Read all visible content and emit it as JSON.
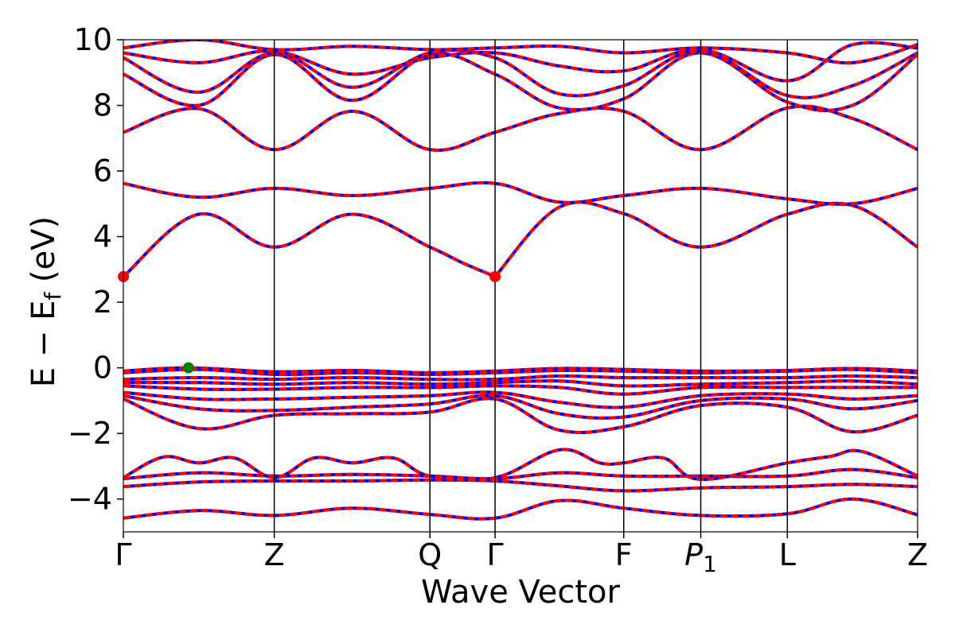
{
  "chart_data": {
    "type": "line",
    "xlabel": "Wave Vector",
    "ylabel": "E − E_f (eV)",
    "ylabel_parts": {
      "main": "E − E",
      "sub": "f",
      "unit": " (eV)"
    },
    "ylim": [
      -5,
      10
    ],
    "yticks": [
      -4,
      -2,
      0,
      2,
      4,
      6,
      8,
      10
    ],
    "ytick_labels": [
      "−4",
      "−2",
      "0",
      "2",
      "4",
      "6",
      "8",
      "10"
    ],
    "grid": false,
    "legend": "none",
    "x_range": [
      0,
      1
    ],
    "kpoints": [
      {
        "label": "Γ",
        "x": 0.0
      },
      {
        "label": "Z",
        "x": 0.19
      },
      {
        "label": "Q",
        "x": 0.386
      },
      {
        "label": "Γ",
        "x": 0.468
      },
      {
        "label": "F",
        "x": 0.63
      },
      {
        "label": "P",
        "sub": "1",
        "italic": true,
        "x": 0.727
      },
      {
        "label": "L",
        "x": 0.836
      },
      {
        "label": "Z",
        "x": 1.0
      }
    ],
    "colors": {
      "band_solid": "#0000ff",
      "band_dashed": "#ff0000",
      "vbm_marker": "#008000",
      "cbm_marker": "#ff0000"
    },
    "markers": [
      {
        "name": "vbm",
        "x": 0.082,
        "y": 0.0
      },
      {
        "name": "cbm",
        "x": 0.0,
        "y": 2.78
      },
      {
        "name": "cbm",
        "x": 0.468,
        "y": 2.78
      }
    ],
    "series": [
      {
        "x": [
          0.0,
          0.095,
          0.19,
          0.288,
          0.386,
          0.468,
          0.549,
          0.63,
          0.727,
          0.836,
          0.918,
          1.0
        ],
        "y": [
          -4.58,
          -4.35,
          -4.5,
          -4.28,
          -4.47,
          -4.58,
          -4.05,
          -4.28,
          -4.5,
          -4.45,
          -4.0,
          -4.48
        ]
      },
      {
        "x": [
          0.0,
          0.095,
          0.19,
          0.288,
          0.386,
          0.468,
          0.549,
          0.63,
          0.727,
          0.836,
          0.918,
          1.0
        ],
        "y": [
          -3.62,
          -3.48,
          -3.45,
          -3.45,
          -3.42,
          -3.45,
          -3.6,
          -3.75,
          -3.66,
          -3.62,
          -3.55,
          -3.62
        ]
      },
      {
        "x": [
          0.0,
          0.095,
          0.19,
          0.288,
          0.386,
          0.468,
          0.549,
          0.63,
          0.727,
          0.836,
          0.918,
          1.0
        ],
        "y": [
          -3.38,
          -3.2,
          -3.3,
          -3.25,
          -3.3,
          -3.38,
          -3.2,
          -3.3,
          -3.3,
          -3.3,
          -3.1,
          -3.35
        ]
      },
      {
        "x": [
          0.0,
          0.05,
          0.095,
          0.14,
          0.19,
          0.24,
          0.288,
          0.34,
          0.386,
          0.468,
          0.549,
          0.6,
          0.63,
          0.68,
          0.727,
          0.836,
          0.89,
          0.93,
          1.0
        ],
        "y": [
          -3.35,
          -2.72,
          -2.9,
          -2.75,
          -3.35,
          -2.75,
          -2.9,
          -2.75,
          -3.3,
          -3.35,
          -2.5,
          -2.9,
          -2.9,
          -2.75,
          -3.4,
          -2.9,
          -2.7,
          -2.55,
          -3.3
        ]
      },
      {
        "x": [
          0.0,
          0.095,
          0.19,
          0.288,
          0.386,
          0.468,
          0.549,
          0.63,
          0.727,
          0.836,
          0.918,
          1.0
        ],
        "y": [
          -0.95,
          -1.85,
          -1.45,
          -1.4,
          -1.35,
          -0.95,
          -1.9,
          -1.8,
          -1.15,
          -1.2,
          -1.95,
          -1.45
        ]
      },
      {
        "x": [
          0.0,
          0.095,
          0.19,
          0.288,
          0.386,
          0.468,
          0.549,
          0.63,
          0.727,
          0.836,
          0.918,
          1.0
        ],
        "y": [
          -0.85,
          -1.25,
          -1.3,
          -1.2,
          -1.1,
          -0.85,
          -1.4,
          -1.5,
          -1.0,
          -0.95,
          -1.25,
          -1.0
        ]
      },
      {
        "x": [
          0.0,
          0.095,
          0.19,
          0.288,
          0.386,
          0.468,
          0.549,
          0.63,
          0.727,
          0.836,
          0.918,
          1.0
        ],
        "y": [
          -0.75,
          -0.95,
          -0.95,
          -0.9,
          -0.85,
          -0.75,
          -1.05,
          -1.2,
          -0.85,
          -0.8,
          -0.95,
          -0.85
        ]
      },
      {
        "x": [
          0.0,
          0.095,
          0.19,
          0.288,
          0.386,
          0.468,
          0.549,
          0.63,
          0.727,
          0.836,
          0.918,
          1.0
        ],
        "y": [
          -0.55,
          -0.65,
          -0.65,
          -0.6,
          -0.6,
          -0.55,
          -0.6,
          -0.8,
          -0.6,
          -0.6,
          -0.6,
          -0.6
        ]
      },
      {
        "x": [
          0.0,
          0.095,
          0.19,
          0.288,
          0.386,
          0.468,
          0.549,
          0.63,
          0.727,
          0.836,
          0.918,
          1.0
        ],
        "y": [
          -0.45,
          -0.45,
          -0.5,
          -0.45,
          -0.5,
          -0.45,
          -0.4,
          -0.55,
          -0.5,
          -0.45,
          -0.4,
          -0.5
        ]
      },
      {
        "x": [
          0.0,
          0.095,
          0.19,
          0.288,
          0.386,
          0.468,
          0.549,
          0.63,
          0.727,
          0.836,
          0.918,
          1.0
        ],
        "y": [
          -0.35,
          -0.3,
          -0.35,
          -0.3,
          -0.35,
          -0.35,
          -0.25,
          -0.3,
          -0.3,
          -0.3,
          -0.25,
          -0.3
        ]
      },
      {
        "x": [
          0.0,
          0.095,
          0.19,
          0.288,
          0.386,
          0.468,
          0.549,
          0.63,
          0.727,
          0.836,
          0.918,
          1.0
        ],
        "y": [
          -0.15,
          -0.05,
          -0.2,
          -0.15,
          -0.2,
          -0.15,
          -0.08,
          -0.1,
          -0.15,
          -0.1,
          -0.05,
          -0.15
        ]
      },
      {
        "x": [
          0.0,
          0.082,
          0.19,
          0.288,
          0.386,
          0.468,
          0.549,
          0.63,
          0.727,
          0.836,
          0.918,
          1.0
        ],
        "y": [
          -0.1,
          0.0,
          -0.12,
          -0.08,
          -0.15,
          -0.1,
          -0.02,
          -0.05,
          -0.1,
          -0.08,
          -0.02,
          -0.1
        ]
      },
      {
        "x": [
          0.0,
          0.095,
          0.19,
          0.288,
          0.386,
          0.427,
          0.468
        ],
        "y": [
          2.78,
          4.68,
          3.68,
          4.68,
          3.68,
          3.2,
          2.78
        ]
      },
      {
        "x": [
          0.468,
          0.549,
          0.63,
          0.727,
          0.836,
          0.918,
          1.0
        ],
        "y": [
          2.78,
          4.9,
          4.7,
          3.68,
          4.68,
          4.95,
          3.68
        ]
      },
      {
        "x": [
          0.0,
          0.095,
          0.19,
          0.288,
          0.386,
          0.468,
          0.549,
          0.63,
          0.727,
          0.836,
          0.918,
          1.0
        ],
        "y": [
          5.62,
          5.2,
          5.47,
          5.25,
          5.47,
          5.62,
          5.05,
          5.25,
          5.47,
          5.15,
          5.0,
          5.47
        ]
      },
      {
        "x": [
          0.0,
          0.095,
          0.19,
          0.288,
          0.386,
          0.468,
          0.549,
          0.63,
          0.727,
          0.836,
          0.918,
          1.0
        ],
        "y": [
          7.18,
          7.9,
          6.65,
          7.82,
          6.65,
          7.18,
          7.75,
          7.82,
          6.65,
          7.92,
          7.6,
          6.65
        ]
      },
      {
        "x": [
          0.0,
          0.095,
          0.19,
          0.288,
          0.386,
          0.468,
          0.549,
          0.63,
          0.727,
          0.836,
          0.918,
          1.0
        ],
        "y": [
          8.95,
          8.0,
          9.55,
          8.15,
          9.55,
          8.95,
          7.92,
          8.2,
          9.6,
          8.1,
          8.0,
          9.55
        ]
      },
      {
        "x": [
          0.0,
          0.095,
          0.19,
          0.288,
          0.386,
          0.468,
          0.549,
          0.63,
          0.727,
          0.836,
          0.918,
          1.0
        ],
        "y": [
          9.45,
          8.4,
          9.6,
          8.55,
          9.6,
          9.45,
          8.35,
          8.6,
          9.65,
          8.3,
          8.6,
          9.6
        ]
      },
      {
        "x": [
          0.0,
          0.095,
          0.19,
          0.288,
          0.386,
          0.468,
          0.549,
          0.63,
          0.727,
          0.836,
          0.918,
          1.0
        ],
        "y": [
          9.6,
          9.3,
          9.65,
          8.95,
          9.45,
          9.6,
          9.2,
          9.05,
          9.7,
          8.75,
          9.85,
          9.75
        ]
      },
      {
        "x": [
          0.0,
          0.095,
          0.19,
          0.288,
          0.386,
          0.468,
          0.549,
          0.63,
          0.727,
          0.836,
          0.918,
          1.0
        ],
        "y": [
          9.75,
          10.0,
          9.7,
          9.8,
          9.7,
          9.75,
          9.8,
          9.6,
          9.75,
          9.6,
          9.3,
          9.85
        ]
      }
    ]
  }
}
